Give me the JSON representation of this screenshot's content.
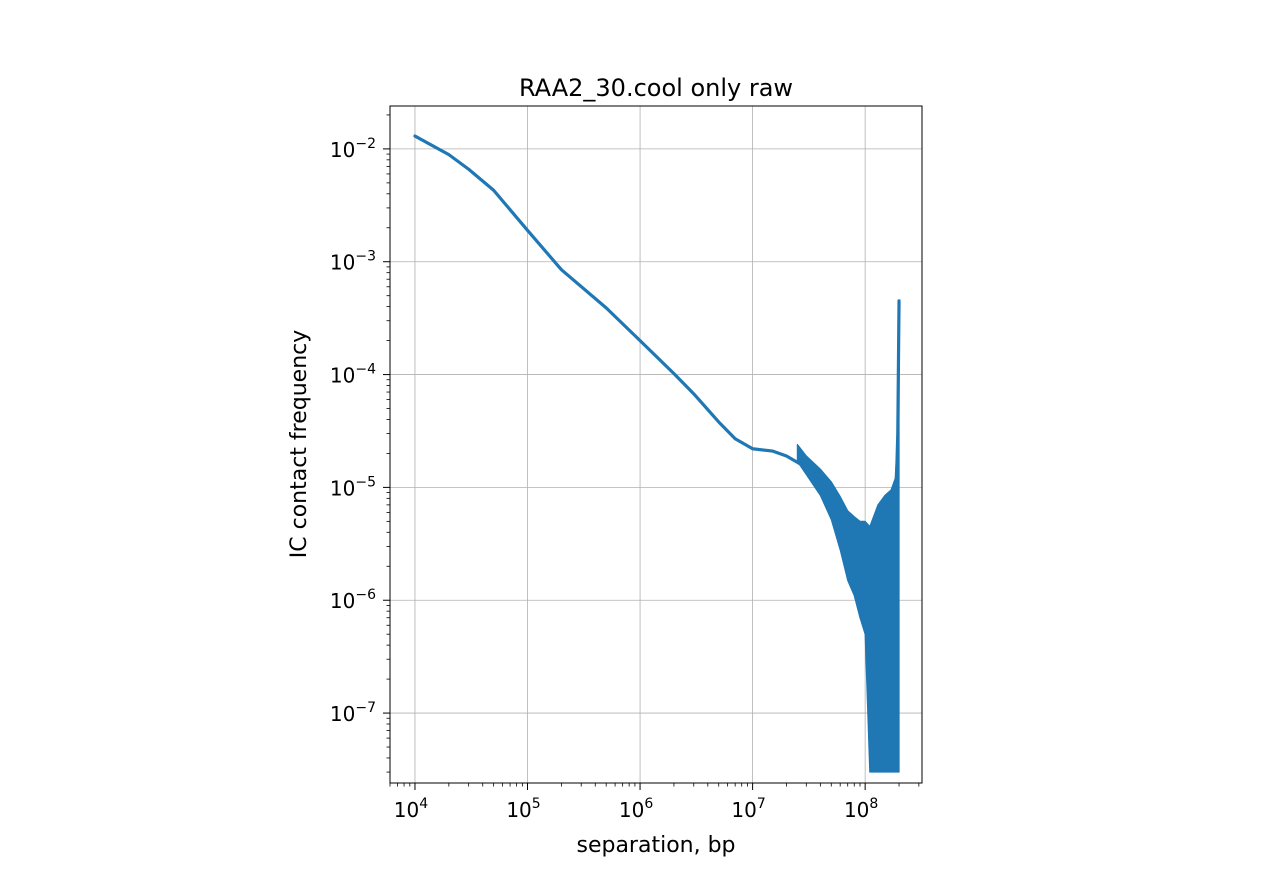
{
  "chart_data": {
    "type": "line",
    "title": "RAA2_30.cool only raw",
    "xlabel": "separation, bp",
    "ylabel": "IC contact frequency",
    "xscale": "log",
    "yscale": "log",
    "xlim": [
      6000,
      320000000
    ],
    "ylim": [
      2.4e-08,
      0.024
    ],
    "x_ticks": [
      {
        "value": 10000,
        "base": "10",
        "exp": "4"
      },
      {
        "value": 100000,
        "base": "10",
        "exp": "5"
      },
      {
        "value": 1000000,
        "base": "10",
        "exp": "6"
      },
      {
        "value": 10000000,
        "base": "10",
        "exp": "7"
      },
      {
        "value": 100000000,
        "base": "10",
        "exp": "8"
      }
    ],
    "y_ticks": [
      {
        "value": 1e-07,
        "base": "10",
        "exp": "−7"
      },
      {
        "value": 1e-06,
        "base": "10",
        "exp": "−6"
      },
      {
        "value": 1e-05,
        "base": "10",
        "exp": "−5"
      },
      {
        "value": 0.0001,
        "base": "10",
        "exp": "−4"
      },
      {
        "value": 0.001,
        "base": "10",
        "exp": "−3"
      },
      {
        "value": 0.01,
        "base": "10",
        "exp": "−2"
      }
    ],
    "grid": true,
    "legend": "none",
    "series": [
      {
        "color": "#1f77b4",
        "x": [
          10000,
          20000,
          30000,
          50000,
          100000,
          200000,
          500000,
          1000000,
          2000000,
          3000000,
          5000000,
          7000000,
          10000000,
          15000000,
          20000000,
          30000000,
          40000000,
          50000000,
          60000000,
          70000000,
          80000000,
          90000000,
          100000000,
          110000000,
          130000000,
          150000000,
          170000000,
          185000000,
          190000000,
          195000000,
          200000000
        ],
        "y": [
          0.013,
          0.0089,
          0.0066,
          0.0043,
          0.0019,
          0.00085,
          0.00039,
          0.0002,
          0.000102,
          6.75e-05,
          3.8e-05,
          2.7e-05,
          2.2e-05,
          2.1e-05,
          1.9e-05,
          1.5e-05,
          1.1e-05,
          8.4e-06,
          6.2e-06,
          4.8e-06,
          4.2e-06,
          3.7e-06,
          3.6e-06,
          3.8e-06,
          4.5e-06,
          5.5e-06,
          6.6e-06,
          8.5e-06,
          1.2e-05,
          3e-05,
          0.00045
        ],
        "band_x": [
          25000000,
          30000000,
          40000000,
          50000000,
          60000000,
          70000000,
          80000000,
          90000000,
          100000000,
          110000000,
          130000000,
          150000000,
          170000000,
          185000000,
          195000000,
          200000000
        ],
        "band_upper": [
          2.4e-05,
          1.9e-05,
          1.45e-05,
          1.12e-05,
          8.3e-06,
          6.2e-06,
          5.5e-06,
          5e-06,
          5e-06,
          4.5e-06,
          7e-06,
          8.5e-06,
          9.5e-06,
          1.2e-05,
          3e-05,
          0.00045
        ],
        "band_lower": [
          1.7e-05,
          1.3e-05,
          8.5e-06,
          5.2e-06,
          2.8e-06,
          1.5e-06,
          1.1e-06,
          7e-07,
          5e-07,
          3e-08,
          3e-08,
          3e-08,
          3e-08,
          3e-08,
          3e-08,
          3e-08
        ]
      }
    ]
  }
}
